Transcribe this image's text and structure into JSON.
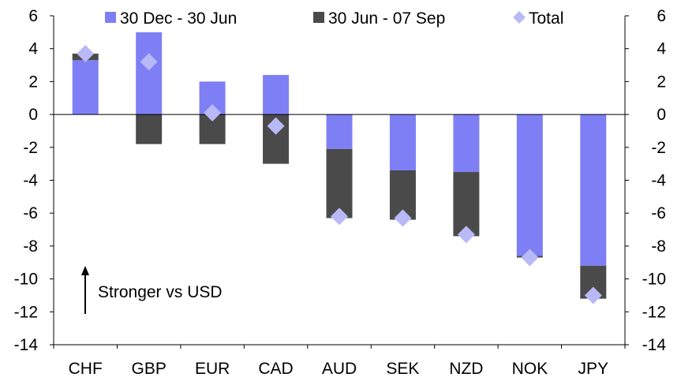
{
  "chart_data": {
    "type": "bar",
    "stacked": true,
    "categories": [
      "CHF",
      "GBP",
      "EUR",
      "CAD",
      "AUD",
      "SEK",
      "NZD",
      "NOK",
      "JPY"
    ],
    "series": [
      {
        "name": "30 Dec - 30 Jun",
        "color": "#7f7ff5",
        "values": [
          3.3,
          5.0,
          2.0,
          2.4,
          -2.1,
          -3.4,
          -3.5,
          -8.6,
          -9.2
        ]
      },
      {
        "name": "30 Jun - 07 Sep",
        "color": "#4a4a4a",
        "values": [
          0.4,
          -1.8,
          -1.8,
          -3.0,
          -4.2,
          -3.0,
          -3.9,
          -0.1,
          -2.0
        ]
      }
    ],
    "total": {
      "name": "Total",
      "color": "#b9b9f7",
      "values": [
        3.7,
        3.2,
        0.1,
        -0.7,
        -6.2,
        -6.3,
        -7.3,
        -8.7,
        -11.0
      ]
    },
    "ylim": [
      -14,
      6
    ],
    "yticks": [
      6,
      4,
      2,
      0,
      -2,
      -4,
      -6,
      -8,
      -10,
      -12,
      -14
    ],
    "ytick_labels": [
      "6",
      "4",
      "2",
      "0",
      "-2",
      "-4",
      "-6",
      "-8",
      "-10",
      "-12",
      "-14"
    ],
    "right_axis": true,
    "legend_position": "top",
    "annotation": {
      "text": "Stronger vs USD",
      "arrow": "up"
    }
  }
}
